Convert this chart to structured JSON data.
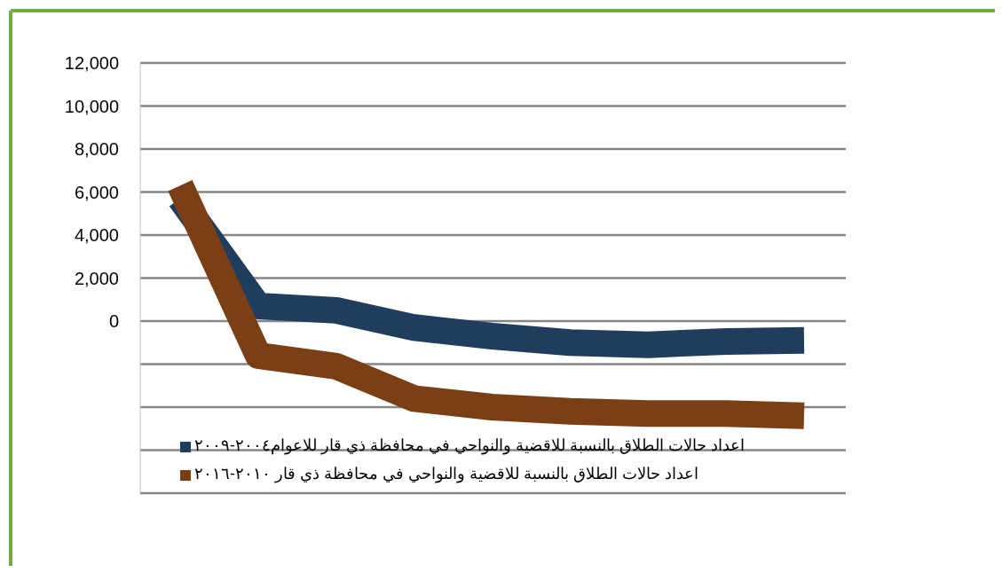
{
  "chart_data": {
    "type": "line",
    "categories": [
      null,
      null,
      null,
      null,
      null,
      null,
      null,
      null,
      null
    ],
    "series": [
      {
        "name": "اعداد حالات الطلاق بالنسبة للاقضية والنواحي في محافظة ذي قار للاعوام٢٠٠٤-٢٠٠٩",
        "color": "#203d5e",
        "values": [
          5700,
          700,
          500,
          -300,
          -700,
          -1000,
          -1100,
          -950,
          -900
        ]
      },
      {
        "name": "اعداد حالات الطلاق بالنسبة للاقضية والنواحي في محافظة ذي قار ٢٠١٠-٢٠١٦",
        "color": "#7b3f15",
        "values": [
          6300,
          -1600,
          -2100,
          -3600,
          -4000,
          -4200,
          -4300,
          -4300,
          -4400
        ]
      }
    ],
    "ylim": [
      -8000,
      12000
    ],
    "yticks": [
      {
        "value": -8000,
        "label": null
      },
      {
        "value": -6000,
        "label": null
      },
      {
        "value": -4000,
        "label": null
      },
      {
        "value": -2000,
        "label": null
      },
      {
        "value": 0,
        "label": "0"
      },
      {
        "value": 2000,
        "label": "2,000"
      },
      {
        "value": 4000,
        "label": "4,000"
      },
      {
        "value": 6000,
        "label": "6,000"
      },
      {
        "value": 8000,
        "label": "8,000"
      },
      {
        "value": 10000,
        "label": "10,000"
      },
      {
        "value": 12000,
        "label": "12,000"
      }
    ],
    "grid": "y",
    "legend": "bottom",
    "tick_labels": "y",
    "line_style": "solid",
    "marker": "none"
  }
}
